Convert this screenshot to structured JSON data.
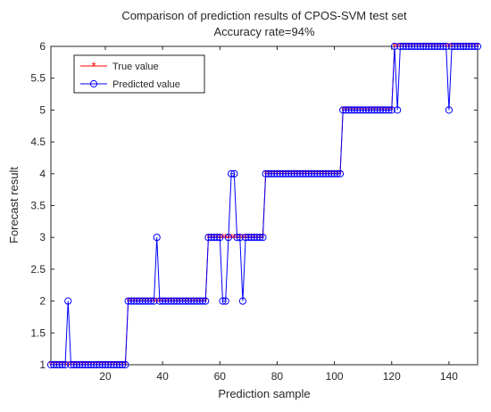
{
  "chart_data": {
    "type": "line",
    "title": "Comparison of prediction results of CPOS-SVM test set",
    "subtitle": "Accuracy rate=94%",
    "xlabel": "Prediction sample",
    "ylabel": "Forecast result",
    "xlim": [
      1,
      150
    ],
    "ylim": [
      1,
      6
    ],
    "x_ticks": [
      20,
      40,
      60,
      80,
      100,
      120,
      140
    ],
    "y_ticks": [
      1,
      1.5,
      2,
      2.5,
      3,
      3.5,
      4,
      4.5,
      5,
      5.5,
      6
    ],
    "grid": false,
    "legend_position": "top-left",
    "x": [
      1,
      2,
      3,
      4,
      5,
      6,
      7,
      8,
      9,
      10,
      11,
      12,
      13,
      14,
      15,
      16,
      17,
      18,
      19,
      20,
      21,
      22,
      23,
      24,
      25,
      26,
      27,
      28,
      29,
      30,
      31,
      32,
      33,
      34,
      35,
      36,
      37,
      38,
      39,
      40,
      41,
      42,
      43,
      44,
      45,
      46,
      47,
      48,
      49,
      50,
      51,
      52,
      53,
      54,
      55,
      56,
      57,
      58,
      59,
      60,
      61,
      62,
      63,
      64,
      65,
      66,
      67,
      68,
      69,
      70,
      71,
      72,
      73,
      74,
      75,
      76,
      77,
      78,
      79,
      80,
      81,
      82,
      83,
      84,
      85,
      86,
      87,
      88,
      89,
      90,
      91,
      92,
      93,
      94,
      95,
      96,
      97,
      98,
      99,
      100,
      101,
      102,
      103,
      104,
      105,
      106,
      107,
      108,
      109,
      110,
      111,
      112,
      113,
      114,
      115,
      116,
      117,
      118,
      119,
      120,
      121,
      122,
      123,
      124,
      125,
      126,
      127,
      128,
      129,
      130,
      131,
      132,
      133,
      134,
      135,
      136,
      137,
      138,
      139,
      140,
      141,
      142,
      143,
      144,
      145,
      146,
      147,
      148,
      149,
      150
    ],
    "series": [
      {
        "name": "True value",
        "color": "#ff0000",
        "marker": "asterisk",
        "values": [
          1,
          1,
          1,
          1,
          1,
          1,
          1,
          1,
          1,
          1,
          1,
          1,
          1,
          1,
          1,
          1,
          1,
          1,
          1,
          1,
          1,
          1,
          1,
          1,
          1,
          1,
          1,
          2,
          2,
          2,
          2,
          2,
          2,
          2,
          2,
          2,
          2,
          2,
          2,
          2,
          2,
          2,
          2,
          2,
          2,
          2,
          2,
          2,
          2,
          2,
          2,
          2,
          2,
          2,
          2,
          3,
          3,
          3,
          3,
          3,
          3,
          3,
          3,
          3,
          3,
          3,
          3,
          3,
          3,
          3,
          3,
          3,
          3,
          3,
          3,
          4,
          4,
          4,
          4,
          4,
          4,
          4,
          4,
          4,
          4,
          4,
          4,
          4,
          4,
          4,
          4,
          4,
          4,
          4,
          4,
          4,
          4,
          4,
          4,
          4,
          4,
          4,
          5,
          5,
          5,
          5,
          5,
          5,
          5,
          5,
          5,
          5,
          5,
          5,
          5,
          5,
          5,
          5,
          5,
          5,
          6,
          6,
          6,
          6,
          6,
          6,
          6,
          6,
          6,
          6,
          6,
          6,
          6,
          6,
          6,
          6,
          6,
          6,
          6,
          6,
          6,
          6,
          6,
          6,
          6,
          6,
          6,
          6,
          6,
          6
        ]
      },
      {
        "name": "Predicted value",
        "color": "#0000ff",
        "marker": "circle",
        "values": [
          1,
          1,
          1,
          1,
          1,
          1,
          2,
          1,
          1,
          1,
          1,
          1,
          1,
          1,
          1,
          1,
          1,
          1,
          1,
          1,
          1,
          1,
          1,
          1,
          1,
          1,
          1,
          2,
          2,
          2,
          2,
          2,
          2,
          2,
          2,
          2,
          2,
          3,
          2,
          2,
          2,
          2,
          2,
          2,
          2,
          2,
          2,
          2,
          2,
          2,
          2,
          2,
          2,
          2,
          2,
          3,
          3,
          3,
          3,
          3,
          2,
          2,
          3,
          4,
          4,
          3,
          3,
          2,
          3,
          3,
          3,
          3,
          3,
          3,
          3,
          4,
          4,
          4,
          4,
          4,
          4,
          4,
          4,
          4,
          4,
          4,
          4,
          4,
          4,
          4,
          4,
          4,
          4,
          4,
          4,
          4,
          4,
          4,
          4,
          4,
          4,
          4,
          5,
          5,
          5,
          5,
          5,
          5,
          5,
          5,
          5,
          5,
          5,
          5,
          5,
          5,
          5,
          5,
          5,
          5,
          6,
          5,
          6,
          6,
          6,
          6,
          6,
          6,
          6,
          6,
          6,
          6,
          6,
          6,
          6,
          6,
          6,
          6,
          6,
          5,
          6,
          6,
          6,
          6,
          6,
          6,
          6,
          6,
          6,
          6
        ]
      }
    ]
  }
}
